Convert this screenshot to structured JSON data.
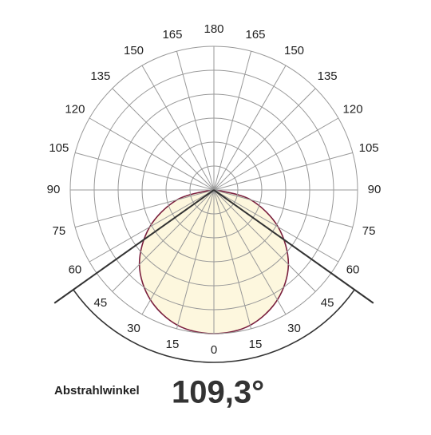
{
  "chart_data": {
    "type": "polar",
    "x": [
      -90,
      -75,
      -60,
      -45,
      -30,
      -15,
      0,
      15,
      30,
      45,
      60,
      75,
      90
    ],
    "values": [
      0.1,
      1.6,
      3.1,
      4.4,
      5.3,
      5.85,
      6,
      5.85,
      5.3,
      4.4,
      3.1,
      1.6,
      0.1
    ],
    "color": "#7a1f3d",
    "fill": "#fdf6d8",
    "rlim": [
      0,
      6
    ],
    "rticks": [
      1,
      2,
      3,
      4,
      5,
      6
    ],
    "angle_ticks": [
      0,
      15,
      30,
      45,
      60,
      75,
      90,
      105,
      120,
      135,
      150,
      165,
      180
    ],
    "beam_angle": 109.3,
    "beam_angle_label": "109,3°",
    "beam_angle_caption": "Abstrahlwinkel"
  }
}
